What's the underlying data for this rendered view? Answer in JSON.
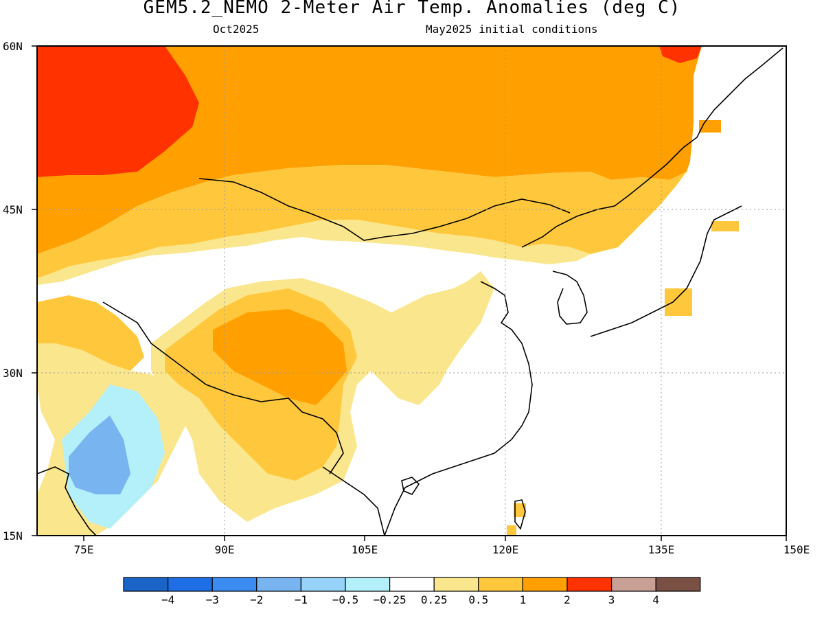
{
  "title": "GEM5.2_NEMO 2-Meter Air Temp. Anomalies (deg C)",
  "subtitle_left": "Oct2025",
  "subtitle_right": "May2025 initial conditions",
  "axes": {
    "lat_labels": [
      "60N",
      "45N",
      "30N",
      "15N"
    ],
    "lon_labels": [
      "75E",
      "90E",
      "105E",
      "120E",
      "135E",
      "150E"
    ]
  },
  "colorbar": {
    "colors": [
      "#1a64c8",
      "#1e6ee6",
      "#3a8cf0",
      "#78b4f0",
      "#96d2fa",
      "#b4f0fa",
      "#ffffff",
      "#fae68c",
      "#ffc83c",
      "#ffa000",
      "#ff3200",
      "#c8a096",
      "#7a5044"
    ],
    "tick_labels": [
      "-4",
      "-3",
      "-2",
      "-1",
      "-0.5",
      "-0.25",
      "0.25",
      "0.5",
      "1",
      "2",
      "3",
      "4"
    ]
  },
  "legend_colors": {
    "warm_0_25_0_5": "#fae68c",
    "warm_0_5_1": "#ffc83c",
    "warm_1_2": "#ffa000",
    "warm_2_3": "#ff3200",
    "cool_minus_0_25": "#b4f0fa",
    "cool_minus_0_5": "#96d2fa"
  }
}
